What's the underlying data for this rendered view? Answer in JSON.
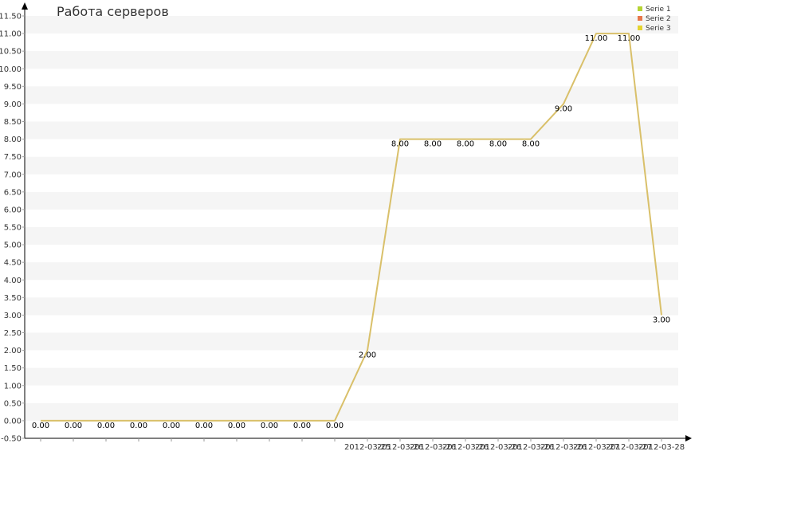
{
  "chart_data": {
    "type": "line",
    "title": "Работа серверов",
    "xlabel": "",
    "ylabel": "",
    "ylim": [
      -0.5,
      11.5
    ],
    "y_ticks": [
      "-0.50",
      "0.00",
      "0.50",
      "1.00",
      "1.50",
      "2.00",
      "2.50",
      "3.00",
      "3.50",
      "4.00",
      "4.50",
      "5.00",
      "5.50",
      "6.00",
      "6.50",
      "7.00",
      "7.50",
      "8.00",
      "8.50",
      "9.00",
      "9.50",
      "10.00",
      "10.50",
      "11.00",
      "11.50"
    ],
    "y_tick_values": [
      -0.5,
      0,
      0.5,
      1,
      1.5,
      2,
      2.5,
      3,
      3.5,
      4,
      4.5,
      5,
      5.5,
      6,
      6.5,
      7,
      7.5,
      8,
      8.5,
      9,
      9.5,
      10,
      10.5,
      11,
      11.5
    ],
    "categories": [
      "",
      "",
      "",
      "",
      "",
      "",
      "",
      "",
      "",
      "",
      "2012-03-25",
      "2012-03-26",
      "2012-03-26",
      "2012-03-26",
      "2012-03-26",
      "2012-03-26",
      "2012-03-26",
      "2012-03-27",
      "2012-03-27",
      "2012-03-28"
    ],
    "series": [
      {
        "name": "Serie 3",
        "values": [
          0,
          0,
          0,
          0,
          0,
          0,
          0,
          0,
          0,
          0,
          2,
          8,
          8,
          8,
          8,
          8,
          9,
          11,
          11,
          3
        ]
      }
    ],
    "data_labels": [
      "0.00",
      "0.00",
      "0.00",
      "0.00",
      "0.00",
      "0.00",
      "0.00",
      "0.00",
      "0.00",
      "0.00",
      "2.00",
      "8.00",
      "8.00",
      "8.00",
      "8.00",
      "8.00",
      "9.00",
      "11.00",
      "11.00",
      "3.00"
    ],
    "legend": {
      "placement": "top-right",
      "items": [
        {
          "label": "Serie 1",
          "color": "#b5d334"
        },
        {
          "label": "Serie 2",
          "color": "#e8774a"
        },
        {
          "label": "Serie 3",
          "color": "#e4d431"
        }
      ]
    },
    "line_color": "#d9c06a",
    "grid": true,
    "band_color": "#f5f5f5",
    "axis_color": "#000000"
  }
}
